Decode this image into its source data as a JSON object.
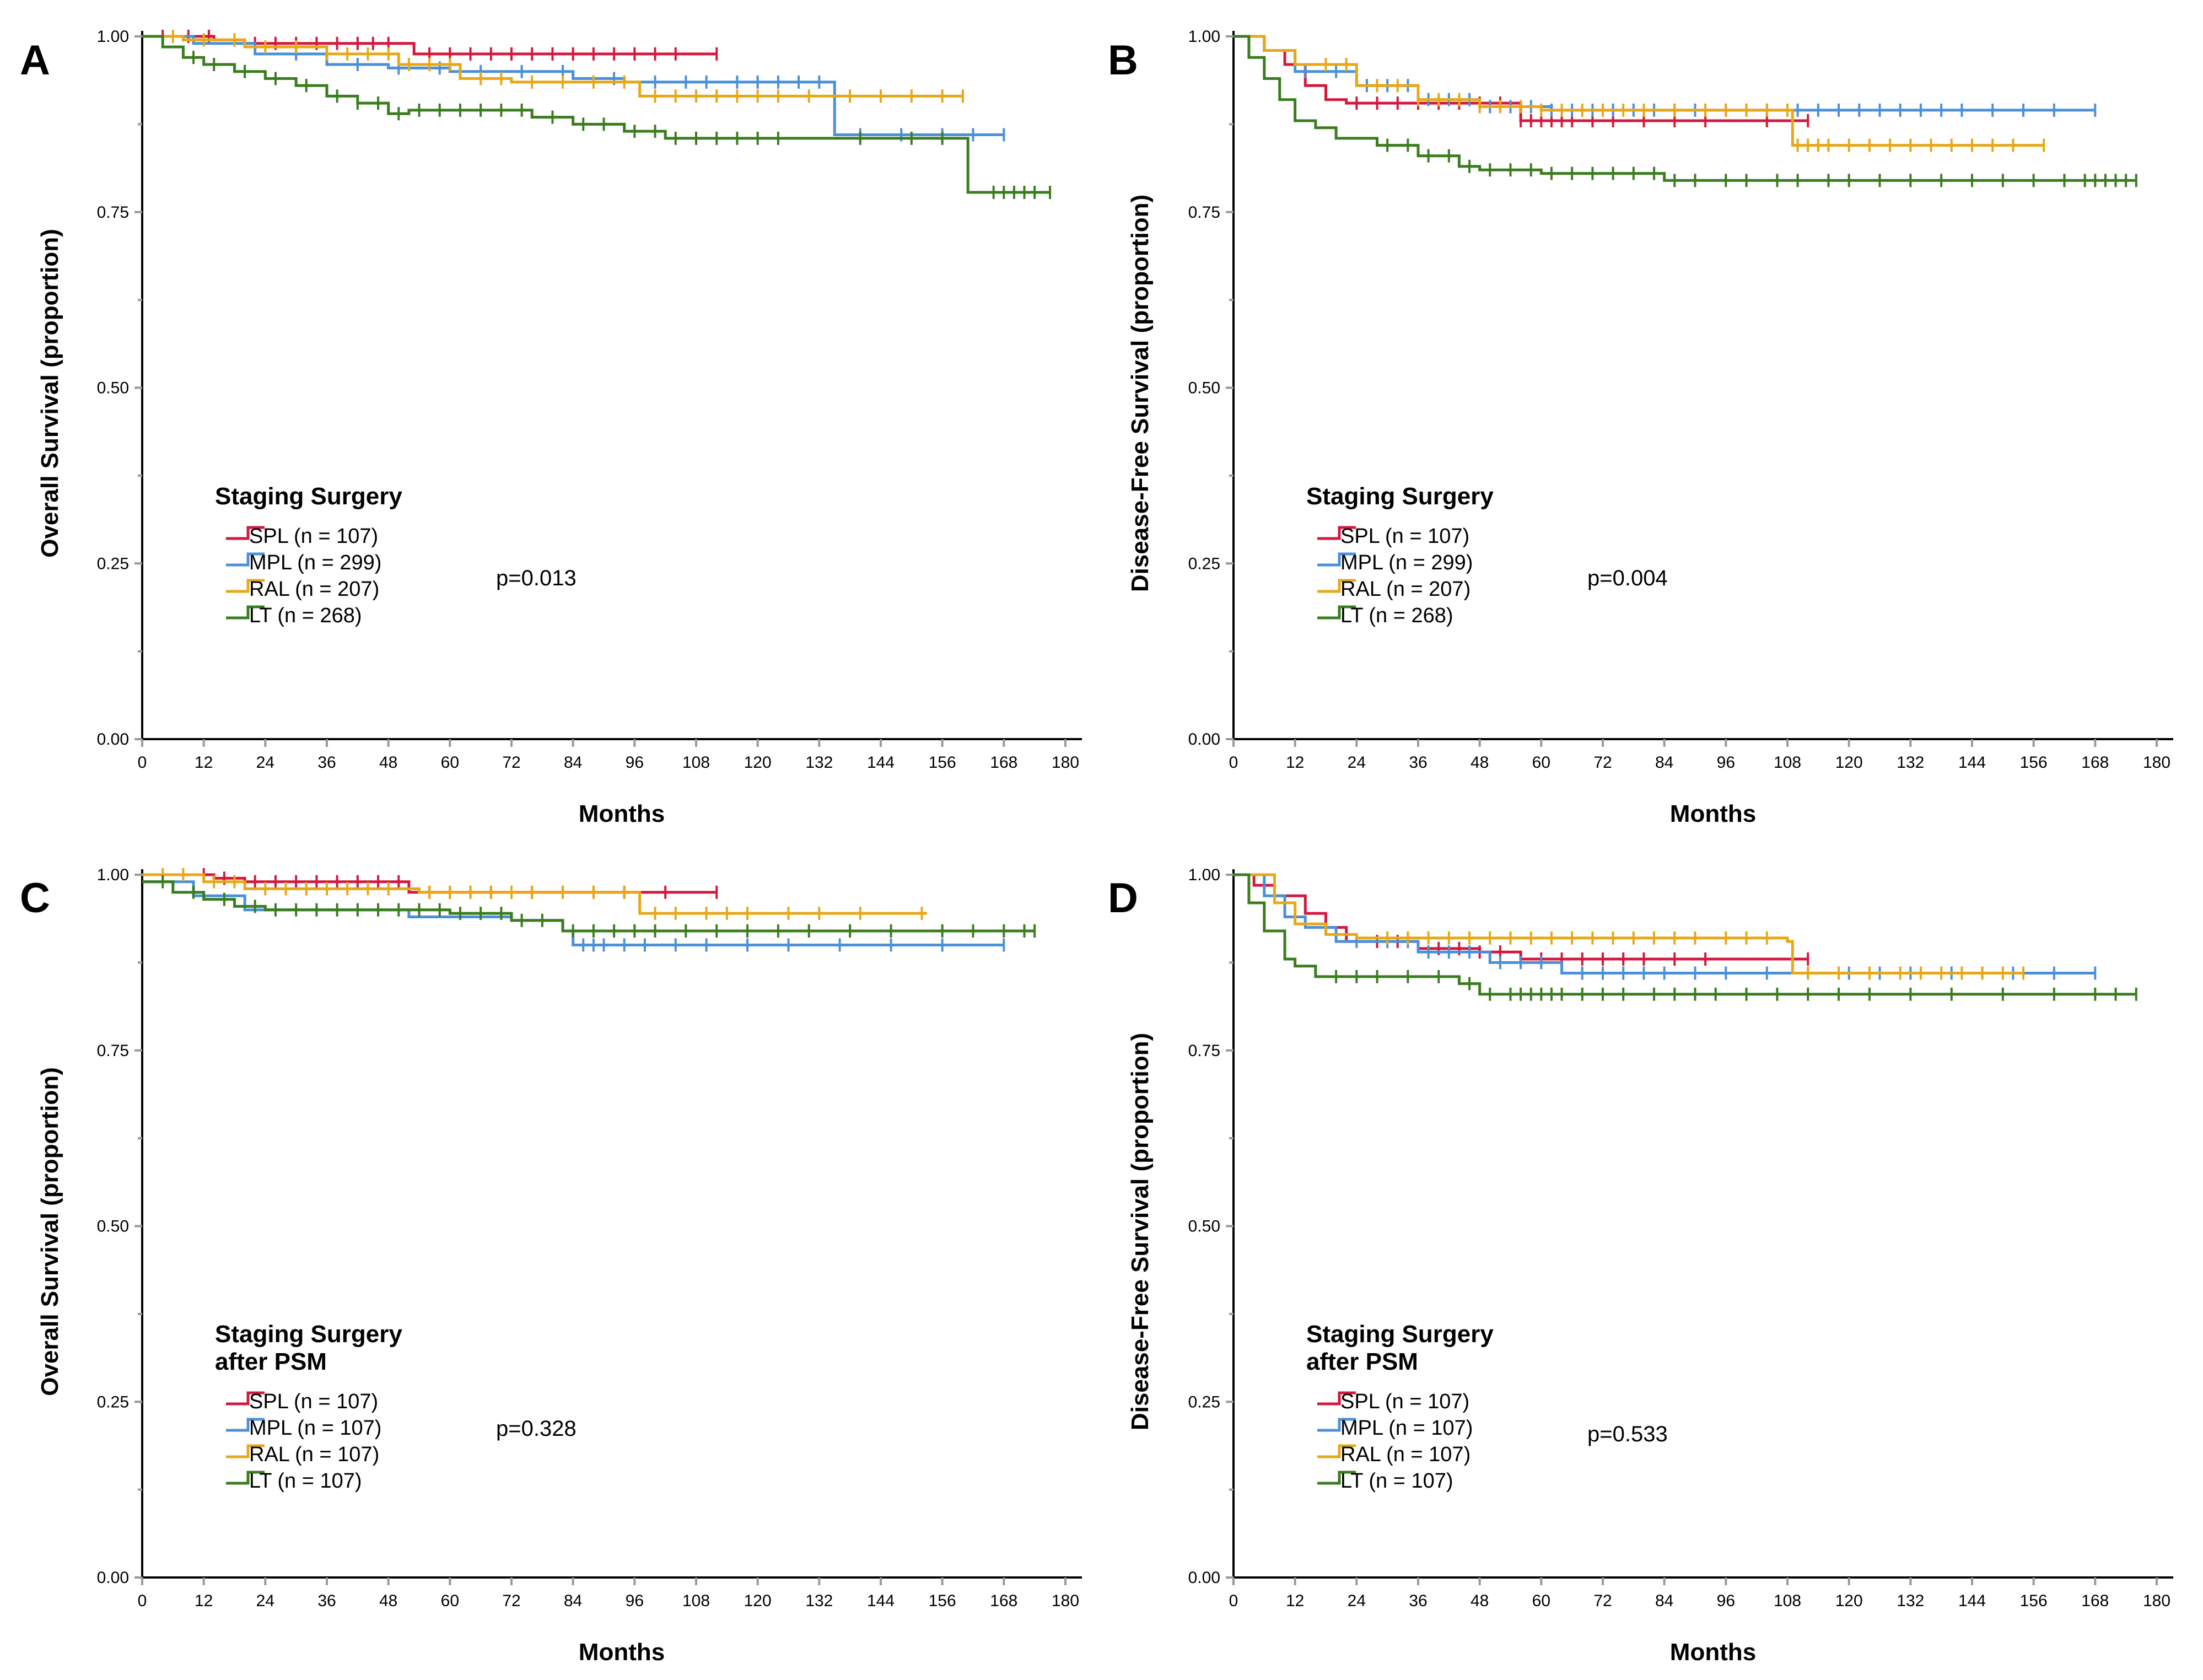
{
  "figure": {
    "colors": {
      "SPL": "#d4183d",
      "MPL": "#4a90d9",
      "RAL": "#e6a817",
      "LT": "#3a7d1e"
    }
  },
  "chart_data": [
    {
      "type": "line",
      "panel": "A",
      "xlabel": "Months",
      "ylabel": "Overall Survival (proportion)",
      "x_ticks": [
        "0",
        "12",
        "24",
        "36",
        "48",
        "60",
        "72",
        "84",
        "96",
        "108",
        "120",
        "132",
        "144",
        "156",
        "168",
        "180"
      ],
      "y_ticks": [
        "0.00",
        "0.25",
        "0.50",
        "0.75",
        "1.00"
      ],
      "xlim": [
        0,
        180
      ],
      "ylim": [
        0,
        1
      ],
      "legend_title": [
        "Staging Surgery"
      ],
      "legend": [
        {
          "key": "SPL",
          "label": "SPL (n = 107)"
        },
        {
          "key": "MPL",
          "label": "MPL (n = 299)"
        },
        {
          "key": "RAL",
          "label": "RAL (n = 207)"
        },
        {
          "key": "LT",
          "label": "LT    (n = 268)"
        }
      ],
      "pvalue": "p=0.013",
      "series": [
        {
          "name": "SPL",
          "x": [
            0,
            14,
            20,
            53,
            112
          ],
          "y": [
            1.0,
            0.995,
            0.99,
            0.975,
            0.975
          ],
          "censor": [
            4,
            9,
            13,
            18,
            22,
            26,
            30,
            34,
            38,
            42,
            45,
            48,
            56,
            60,
            64,
            68,
            72,
            76,
            80,
            84,
            88,
            92,
            96,
            100,
            104,
            112
          ]
        },
        {
          "name": "MPL",
          "x": [
            0,
            10,
            22,
            36,
            48,
            60,
            72,
            84,
            94,
            134,
            135,
            168
          ],
          "y": [
            1.0,
            0.99,
            0.975,
            0.96,
            0.955,
            0.95,
            0.95,
            0.94,
            0.935,
            0.935,
            0.86,
            0.86
          ],
          "censor": [
            30,
            42,
            50,
            58,
            66,
            74,
            82,
            92,
            100,
            106,
            110,
            116,
            120,
            124,
            128,
            132,
            140,
            148,
            156,
            162,
            168
          ]
        },
        {
          "name": "RAL",
          "x": [
            0,
            8,
            20,
            36,
            50,
            62,
            72,
            96,
            97,
            160
          ],
          "y": [
            1.0,
            0.995,
            0.985,
            0.975,
            0.96,
            0.94,
            0.935,
            0.935,
            0.915,
            0.915
          ],
          "censor": [
            6,
            12,
            18,
            24,
            30,
            36,
            40,
            44,
            48,
            52,
            56,
            60,
            66,
            70,
            76,
            82,
            88,
            94,
            100,
            104,
            108,
            112,
            116,
            120,
            124,
            130,
            138,
            144,
            150,
            156,
            160
          ]
        },
        {
          "name": "LT",
          "x": [
            0,
            4,
            8,
            12,
            18,
            24,
            30,
            36,
            42,
            48,
            52,
            66,
            76,
            84,
            94,
            102,
            138,
            160,
            161,
            177
          ],
          "y": [
            1.0,
            0.985,
            0.97,
            0.96,
            0.95,
            0.94,
            0.93,
            0.915,
            0.905,
            0.89,
            0.895,
            0.895,
            0.885,
            0.875,
            0.865,
            0.855,
            0.855,
            0.855,
            0.778,
            0.778
          ],
          "censor": [
            10,
            14,
            20,
            26,
            32,
            38,
            42,
            46,
            50,
            54,
            58,
            62,
            66,
            70,
            74,
            80,
            86,
            90,
            96,
            100,
            104,
            108,
            112,
            116,
            120,
            124,
            140,
            150,
            156,
            166,
            168,
            170,
            172,
            174,
            177
          ]
        }
      ]
    },
    {
      "type": "line",
      "panel": "B",
      "xlabel": "Months",
      "ylabel": "Disease-Free Survival (proportion)",
      "x_ticks": [
        "0",
        "12",
        "24",
        "36",
        "48",
        "60",
        "72",
        "84",
        "96",
        "108",
        "120",
        "132",
        "144",
        "156",
        "168",
        "180"
      ],
      "y_ticks": [
        "0.00",
        "0.25",
        "0.50",
        "0.75",
        "1.00"
      ],
      "xlim": [
        0,
        180
      ],
      "ylim": [
        0,
        1
      ],
      "legend_title": [
        "Staging Surgery"
      ],
      "legend": [
        {
          "key": "SPL",
          "label": "SPL (n = 107)"
        },
        {
          "key": "MPL",
          "label": "MPL (n = 299)"
        },
        {
          "key": "RAL",
          "label": "RAL (n = 207)"
        },
        {
          "key": "LT",
          "label": "LT    (n = 268)"
        }
      ],
      "pvalue": "p=0.004",
      "series": [
        {
          "name": "SPL",
          "x": [
            0,
            6,
            10,
            14,
            18,
            22,
            56,
            112
          ],
          "y": [
            1.0,
            0.98,
            0.96,
            0.93,
            0.91,
            0.905,
            0.88,
            0.88
          ],
          "censor": [
            24,
            28,
            32,
            36,
            40,
            44,
            48,
            52,
            56,
            58,
            60,
            62,
            64,
            66,
            70,
            74,
            80,
            86,
            92,
            104,
            112
          ]
        },
        {
          "name": "MPL",
          "x": [
            0,
            6,
            12,
            24,
            36,
            48,
            62,
            168
          ],
          "y": [
            1.0,
            0.98,
            0.95,
            0.93,
            0.91,
            0.9,
            0.895,
            0.895
          ],
          "censor": [
            14,
            20,
            26,
            30,
            34,
            38,
            42,
            46,
            50,
            54,
            58,
            62,
            66,
            70,
            74,
            78,
            82,
            86,
            90,
            96,
            100,
            104,
            110,
            114,
            118,
            122,
            126,
            130,
            134,
            138,
            142,
            148,
            154,
            160,
            168
          ]
        },
        {
          "name": "RAL",
          "x": [
            0,
            6,
            12,
            24,
            36,
            48,
            60,
            108,
            109,
            158
          ],
          "y": [
            1.0,
            0.98,
            0.96,
            0.93,
            0.91,
            0.9,
            0.895,
            0.895,
            0.845,
            0.845
          ],
          "censor": [
            18,
            22,
            28,
            32,
            36,
            40,
            44,
            48,
            52,
            56,
            60,
            64,
            68,
            72,
            76,
            80,
            86,
            92,
            96,
            100,
            104,
            108,
            110,
            112,
            114,
            116,
            120,
            124,
            128,
            132,
            136,
            140,
            144,
            148,
            152,
            158
          ]
        },
        {
          "name": "LT",
          "x": [
            0,
            3,
            6,
            9,
            12,
            16,
            20,
            28,
            36,
            44,
            48,
            60,
            84,
            176
          ],
          "y": [
            1.0,
            0.97,
            0.94,
            0.91,
            0.88,
            0.87,
            0.855,
            0.845,
            0.83,
            0.815,
            0.81,
            0.805,
            0.795,
            0.795
          ],
          "censor": [
            30,
            34,
            38,
            42,
            46,
            50,
            54,
            58,
            62,
            66,
            70,
            74,
            78,
            82,
            86,
            90,
            96,
            100,
            106,
            110,
            116,
            120,
            126,
            132,
            138,
            144,
            150,
            156,
            162,
            166,
            168,
            170,
            172,
            174,
            176
          ]
        }
      ]
    },
    {
      "type": "line",
      "panel": "C",
      "xlabel": "Months",
      "ylabel": "Overall Survival (proportion)",
      "x_ticks": [
        "0",
        "12",
        "24",
        "36",
        "48",
        "60",
        "72",
        "84",
        "96",
        "108",
        "120",
        "132",
        "144",
        "156",
        "168",
        "180"
      ],
      "y_ticks": [
        "0.00",
        "0.25",
        "0.50",
        "0.75",
        "1.00"
      ],
      "xlim": [
        0,
        180
      ],
      "ylim": [
        0,
        1
      ],
      "legend_title": [
        "Staging Surgery",
        "after PSM"
      ],
      "legend": [
        {
          "key": "SPL",
          "label": "SPL (n = 107)"
        },
        {
          "key": "MPL",
          "label": "MPL (n = 107)"
        },
        {
          "key": "RAL",
          "label": "RAL (n = 107)"
        },
        {
          "key": "LT",
          "label": "LT    (n = 107)"
        }
      ],
      "pvalue": "p=0.328",
      "series": [
        {
          "name": "SPL",
          "x": [
            0,
            14,
            20,
            52,
            112
          ],
          "y": [
            1.0,
            0.995,
            0.99,
            0.975,
            0.975
          ],
          "censor": [
            12,
            16,
            22,
            26,
            30,
            34,
            38,
            42,
            46,
            50,
            56,
            60,
            64,
            68,
            72,
            76,
            82,
            88,
            94,
            102,
            112
          ]
        },
        {
          "name": "MPL",
          "x": [
            0,
            10,
            20,
            52,
            72,
            82,
            84,
            168
          ],
          "y": [
            0.99,
            0.97,
            0.95,
            0.94,
            0.935,
            0.92,
            0.9,
            0.9
          ],
          "censor": [
            86,
            88,
            90,
            94,
            98,
            104,
            110,
            118,
            126,
            136,
            146,
            156,
            168
          ]
        },
        {
          "name": "RAL",
          "x": [
            0,
            12,
            20,
            54,
            96,
            97,
            153
          ],
          "y": [
            1.0,
            0.99,
            0.98,
            0.975,
            0.975,
            0.945,
            0.945
          ],
          "censor": [
            4,
            8,
            14,
            18,
            24,
            28,
            32,
            36,
            40,
            44,
            48,
            56,
            60,
            64,
            68,
            72,
            76,
            82,
            88,
            94,
            100,
            104,
            110,
            114,
            118,
            126,
            132,
            140,
            152
          ]
        },
        {
          "name": "LT",
          "x": [
            0,
            6,
            12,
            18,
            24,
            48,
            60,
            72,
            80,
            82,
            174
          ],
          "y": [
            0.99,
            0.975,
            0.965,
            0.955,
            0.95,
            0.95,
            0.945,
            0.935,
            0.935,
            0.92,
            0.92
          ],
          "censor": [
            4,
            10,
            16,
            22,
            26,
            30,
            34,
            38,
            42,
            46,
            50,
            54,
            58,
            62,
            66,
            70,
            74,
            78,
            84,
            88,
            92,
            96,
            100,
            106,
            112,
            118,
            124,
            130,
            138,
            146,
            156,
            162,
            168,
            172,
            174
          ]
        }
      ]
    },
    {
      "type": "line",
      "panel": "D",
      "xlabel": "Months",
      "ylabel": "Disease-Free Survival (proportion)",
      "x_ticks": [
        "0",
        "12",
        "24",
        "36",
        "48",
        "60",
        "72",
        "84",
        "96",
        "108",
        "120",
        "132",
        "144",
        "156",
        "168",
        "180"
      ],
      "y_ticks": [
        "0.00",
        "0.25",
        "0.50",
        "0.75",
        "1.00"
      ],
      "xlim": [
        0,
        180
      ],
      "ylim": [
        0,
        1
      ],
      "legend_title": [
        "Staging Surgery",
        "after PSM"
      ],
      "legend": [
        {
          "key": "SPL",
          "label": "SPL (n = 107)"
        },
        {
          "key": "MPL",
          "label": "MPL (n = 107)"
        },
        {
          "key": "RAL",
          "label": "RAL (n = 107)"
        },
        {
          "key": "LT",
          "label": "LT    (n = 107)"
        }
      ],
      "pvalue": "p=0.533",
      "series": [
        {
          "name": "SPL",
          "x": [
            0,
            4,
            8,
            14,
            18,
            22,
            36,
            48,
            56,
            112
          ],
          "y": [
            1.0,
            0.985,
            0.97,
            0.945,
            0.925,
            0.905,
            0.895,
            0.89,
            0.88,
            0.88
          ],
          "censor": [
            28,
            32,
            40,
            44,
            48,
            52,
            56,
            60,
            64,
            68,
            72,
            76,
            80,
            86,
            92,
            112
          ]
        },
        {
          "name": "MPL",
          "x": [
            0,
            6,
            10,
            14,
            20,
            36,
            50,
            64,
            168
          ],
          "y": [
            1.0,
            0.97,
            0.94,
            0.925,
            0.905,
            0.89,
            0.875,
            0.86,
            0.86
          ],
          "censor": [
            24,
            30,
            34,
            38,
            42,
            46,
            52,
            56,
            60,
            68,
            72,
            76,
            80,
            84,
            90,
            96,
            104,
            112,
            120,
            126,
            132,
            140,
            146,
            152,
            160,
            168
          ]
        },
        {
          "name": "RAL",
          "x": [
            0,
            8,
            12,
            18,
            24,
            108,
            109,
            154
          ],
          "y": [
            1.0,
            0.96,
            0.93,
            0.915,
            0.91,
            0.905,
            0.86,
            0.86
          ],
          "censor": [
            30,
            34,
            38,
            42,
            46,
            50,
            54,
            58,
            62,
            66,
            70,
            74,
            78,
            82,
            86,
            90,
            96,
            100,
            104,
            112,
            118,
            124,
            130,
            134,
            138,
            142,
            146,
            150,
            154
          ]
        },
        {
          "name": "LT",
          "x": [
            0,
            3,
            6,
            10,
            12,
            16,
            44,
            48,
            176
          ],
          "y": [
            1.0,
            0.96,
            0.92,
            0.88,
            0.87,
            0.855,
            0.845,
            0.83,
            0.83
          ],
          "censor": [
            20,
            24,
            28,
            34,
            40,
            46,
            50,
            54,
            56,
            58,
            60,
            62,
            64,
            68,
            72,
            76,
            82,
            86,
            90,
            94,
            100,
            106,
            112,
            118,
            124,
            132,
            140,
            150,
            160,
            168,
            172,
            176
          ]
        }
      ]
    }
  ]
}
